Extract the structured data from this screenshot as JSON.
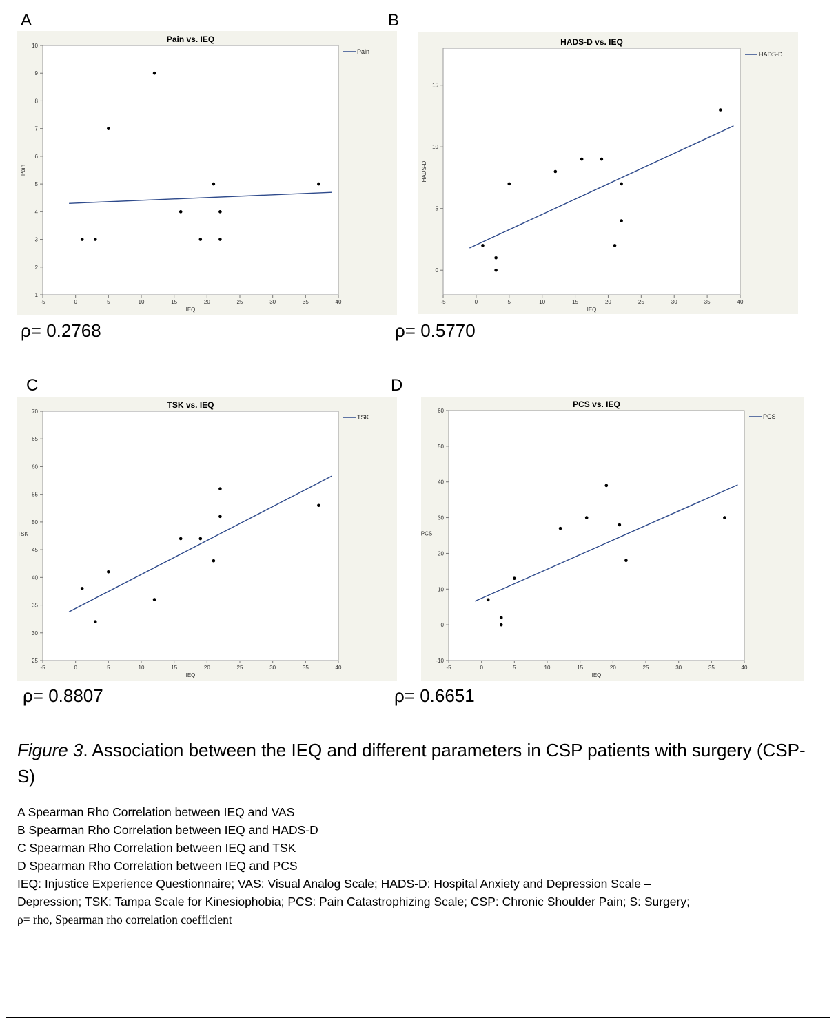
{
  "panels": [
    {
      "letter": "A",
      "rho_text": "ρ= 0.2768"
    },
    {
      "letter": "B",
      "rho_text": "ρ= 0.5770"
    },
    {
      "letter": "C",
      "rho_text": "ρ= 0.8807"
    },
    {
      "letter": "D",
      "rho_text": "ρ= 0.6651"
    }
  ],
  "chart_data": [
    {
      "type": "scatter",
      "title": "Pain vs. IEQ",
      "xlabel": "IEQ",
      "ylabel": "Pain",
      "xlim": [
        -5,
        40
      ],
      "ylim": [
        1,
        10
      ],
      "xticks": [
        -5,
        0,
        5,
        10,
        15,
        20,
        25,
        30,
        35,
        40
      ],
      "yticks": [
        1,
        2,
        3,
        4,
        5,
        6,
        7,
        8,
        9,
        10
      ],
      "legend": "Pain",
      "legend_position": "right",
      "points": [
        [
          1,
          3
        ],
        [
          3,
          3
        ],
        [
          5,
          7
        ],
        [
          12,
          9
        ],
        [
          16,
          4
        ],
        [
          19,
          3
        ],
        [
          21,
          5
        ],
        [
          22,
          4
        ],
        [
          22,
          3
        ],
        [
          37,
          5
        ]
      ],
      "fit_line": [
        [
          -1,
          4.3
        ],
        [
          39,
          4.7
        ]
      ],
      "line_color": "#2e4a8b",
      "background": "#f3f3ec"
    },
    {
      "type": "scatter",
      "title": "HADS-D vs. IEQ",
      "xlabel": "IEQ",
      "ylabel": "HADS-D",
      "xlim": [
        -5,
        40
      ],
      "ylim": [
        -2,
        18
      ],
      "xticks": [
        -5,
        0,
        5,
        10,
        15,
        20,
        25,
        30,
        35,
        40
      ],
      "yticks": [
        0,
        5,
        10,
        15
      ],
      "legend": "HADS-D",
      "legend_position": "right",
      "points": [
        [
          1,
          2
        ],
        [
          3,
          1
        ],
        [
          3,
          0
        ],
        [
          5,
          7
        ],
        [
          12,
          8
        ],
        [
          16,
          9
        ],
        [
          19,
          9
        ],
        [
          21,
          2
        ],
        [
          22,
          7
        ],
        [
          22,
          4
        ],
        [
          37,
          13
        ]
      ],
      "fit_line": [
        [
          -1,
          1.8
        ],
        [
          39,
          11.7
        ]
      ],
      "line_color": "#2e4a8b",
      "background": "#f3f3ec"
    },
    {
      "type": "scatter",
      "title": "TSK vs. IEQ",
      "xlabel": "IEQ",
      "ylabel": "TSK",
      "xlim": [
        -5,
        40
      ],
      "ylim": [
        25,
        70
      ],
      "xticks": [
        -5,
        0,
        5,
        10,
        15,
        20,
        25,
        30,
        35,
        40
      ],
      "yticks": [
        25,
        30,
        35,
        40,
        45,
        50,
        55,
        60,
        65,
        70
      ],
      "legend": "TSK",
      "legend_position": "right",
      "points": [
        [
          1,
          38
        ],
        [
          3,
          32
        ],
        [
          5,
          41
        ],
        [
          12,
          36
        ],
        [
          16,
          47
        ],
        [
          19,
          47
        ],
        [
          21,
          43
        ],
        [
          22,
          56
        ],
        [
          22,
          51
        ],
        [
          37,
          53
        ]
      ],
      "fit_line": [
        [
          -1,
          33.8
        ],
        [
          39,
          58.3
        ]
      ],
      "line_color": "#2e4a8b",
      "background": "#f3f3ec"
    },
    {
      "type": "scatter",
      "title": "PCS vs. IEQ",
      "xlabel": "IEQ",
      "ylabel": "PCS",
      "xlim": [
        -5,
        40
      ],
      "ylim": [
        -10,
        60
      ],
      "xticks": [
        -5,
        0,
        5,
        10,
        15,
        20,
        25,
        30,
        35,
        40
      ],
      "yticks": [
        -10,
        0,
        10,
        20,
        30,
        40,
        50,
        60
      ],
      "legend": "PCS",
      "legend_position": "right",
      "points": [
        [
          1,
          7
        ],
        [
          3,
          2
        ],
        [
          3,
          0
        ],
        [
          5,
          13
        ],
        [
          12,
          27
        ],
        [
          16,
          30
        ],
        [
          19,
          39
        ],
        [
          21,
          28
        ],
        [
          22,
          18
        ],
        [
          37,
          30
        ]
      ],
      "fit_line": [
        [
          -1,
          6.6
        ],
        [
          39,
          39.2
        ]
      ],
      "line_color": "#2e4a8b",
      "background": "#f3f3ec"
    }
  ],
  "caption": {
    "figure_label": "Figure 3",
    "text": ". Association between the IEQ and different parameters in CSP patients with surgery (CSP-S)"
  },
  "notes": {
    "lines": [
      "A Spearman Rho Correlation between IEQ and VAS",
      "B Spearman Rho Correlation between IEQ and HADS-D",
      "C Spearman Rho Correlation between IEQ and TSK",
      "D Spearman Rho Correlation between IEQ and PCS",
      "IEQ: Injustice Experience Questionnaire; VAS: Visual Analog Scale; HADS-D: Hospital Anxiety and Depression Scale –",
      "Depression; TSK: Tampa Scale for Kinesiophobia; PCS: Pain Catastrophizing Scale; CSP: Chronic Shoulder Pain; S: Surgery;"
    ],
    "last_line": "ρ= rho, Spearman rho correlation coefficient"
  }
}
